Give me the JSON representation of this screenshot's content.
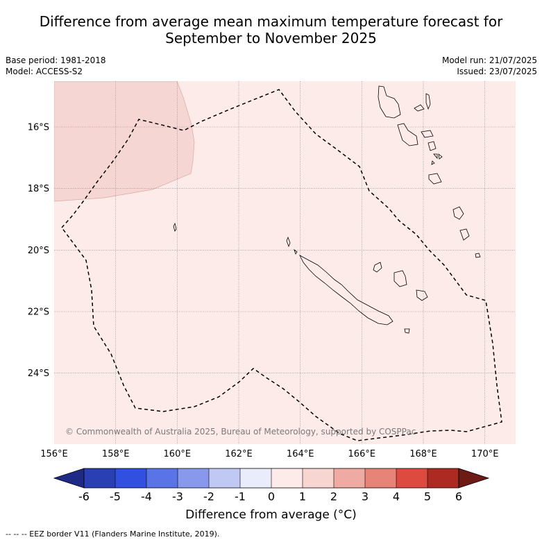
{
  "title_line1": "Difference from average mean maximum temperature forecast for",
  "title_line2": "September to November 2025",
  "meta": {
    "base_period": "Base period: 1981-2018",
    "model": "Model: ACCESS-S2",
    "model_run": "Model run: 21/07/2025",
    "issued": "Issued: 23/07/2025"
  },
  "copyright": "© Commonwealth of Australia 2025, Bureau of Meteorology, supported by COSPPac",
  "map": {
    "lon_range": [
      156,
      171
    ],
    "lat_range": [
      -26.5,
      -14.6
    ],
    "lon_ticks": [
      "156°E",
      "158°E",
      "160°E",
      "162°E",
      "164°E",
      "166°E",
      "168°E",
      "170°E"
    ],
    "lat_ticks": [
      "16°S",
      "18°S",
      "20°S",
      "22°S",
      "24°S"
    ],
    "grid": true,
    "background_category": "0 to 1",
    "anomaly_region": "1 to 2"
  },
  "colorbar": {
    "title": "Difference from average (°C)",
    "tick_labels": [
      "-6",
      "-5",
      "-4",
      "-3",
      "-2",
      "-1",
      "0",
      "1",
      "2",
      "3",
      "4",
      "5",
      "6"
    ],
    "colors": [
      "#1f2a86",
      "#2b3fb5",
      "#3250e0",
      "#5a73e6",
      "#8898ec",
      "#c0c8f4",
      "#e9ecfb",
      "#fcebe8",
      "#f7d6d1",
      "#efaba3",
      "#e88378",
      "#dd4a3f",
      "#ad2a22",
      "#6e1a15"
    ]
  },
  "footnote": "-- -- -- EEZ border V11 (Flanders Marine Institute, 2019)."
}
